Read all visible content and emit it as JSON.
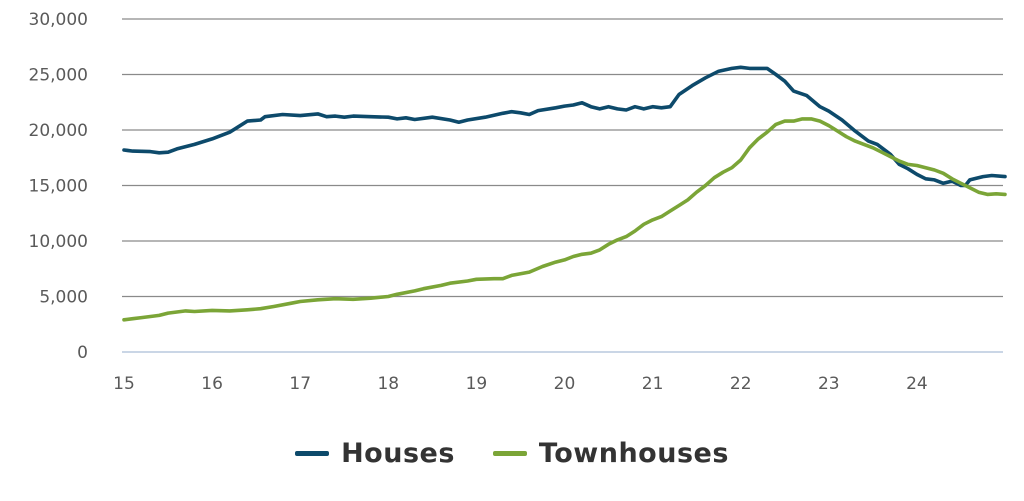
{
  "chart_data": {
    "type": "line",
    "xlim": [
      15,
      25
    ],
    "ylim": [
      0,
      30000
    ],
    "grid": true,
    "legend_position": "bottom-center",
    "x_ticks": [
      {
        "value": 15,
        "label": "15"
      },
      {
        "value": 16,
        "label": "16"
      },
      {
        "value": 17,
        "label": "17"
      },
      {
        "value": 18,
        "label": "18"
      },
      {
        "value": 19,
        "label": "19"
      },
      {
        "value": 20,
        "label": "20"
      },
      {
        "value": 21,
        "label": "21"
      },
      {
        "value": 22,
        "label": "22"
      },
      {
        "value": 23,
        "label": "23"
      },
      {
        "value": 24,
        "label": "24"
      }
    ],
    "y_ticks": [
      {
        "value": 0,
        "label": "0"
      },
      {
        "value": 5000,
        "label": "5,000"
      },
      {
        "value": 10000,
        "label": "10,000"
      },
      {
        "value": 15000,
        "label": "15,000"
      },
      {
        "value": 20000,
        "label": "20,000"
      },
      {
        "value": 25000,
        "label": "25,000"
      },
      {
        "value": 30000,
        "label": "30,000"
      }
    ],
    "series": [
      {
        "name": "Houses",
        "color": "#0d4a6b",
        "points": [
          [
            15.0,
            18200
          ],
          [
            15.1,
            18100
          ],
          [
            15.3,
            18050
          ],
          [
            15.4,
            17950
          ],
          [
            15.5,
            18000
          ],
          [
            15.6,
            18300
          ],
          [
            15.8,
            18700
          ],
          [
            16.0,
            19200
          ],
          [
            16.2,
            19800
          ],
          [
            16.3,
            20300
          ],
          [
            16.4,
            20800
          ],
          [
            16.55,
            20900
          ],
          [
            16.6,
            21200
          ],
          [
            16.8,
            21400
          ],
          [
            17.0,
            21300
          ],
          [
            17.2,
            21450
          ],
          [
            17.3,
            21200
          ],
          [
            17.4,
            21250
          ],
          [
            17.5,
            21150
          ],
          [
            17.6,
            21250
          ],
          [
            17.8,
            21200
          ],
          [
            18.0,
            21150
          ],
          [
            18.1,
            21000
          ],
          [
            18.2,
            21100
          ],
          [
            18.3,
            20950
          ],
          [
            18.5,
            21150
          ],
          [
            18.7,
            20900
          ],
          [
            18.8,
            20700
          ],
          [
            18.9,
            20900
          ],
          [
            19.1,
            21150
          ],
          [
            19.3,
            21500
          ],
          [
            19.4,
            21650
          ],
          [
            19.5,
            21550
          ],
          [
            19.6,
            21400
          ],
          [
            19.7,
            21750
          ],
          [
            19.9,
            22000
          ],
          [
            20.0,
            22150
          ],
          [
            20.1,
            22250
          ],
          [
            20.2,
            22450
          ],
          [
            20.3,
            22100
          ],
          [
            20.4,
            21900
          ],
          [
            20.5,
            22100
          ],
          [
            20.6,
            21900
          ],
          [
            20.7,
            21800
          ],
          [
            20.8,
            22100
          ],
          [
            20.9,
            21900
          ],
          [
            21.0,
            22100
          ],
          [
            21.1,
            22000
          ],
          [
            21.2,
            22100
          ],
          [
            21.3,
            23200
          ],
          [
            21.45,
            24000
          ],
          [
            21.6,
            24700
          ],
          [
            21.75,
            25300
          ],
          [
            21.9,
            25550
          ],
          [
            22.0,
            25650
          ],
          [
            22.1,
            25550
          ],
          [
            22.3,
            25550
          ],
          [
            22.4,
            25000
          ],
          [
            22.5,
            24400
          ],
          [
            22.6,
            23500
          ],
          [
            22.75,
            23100
          ],
          [
            22.9,
            22100
          ],
          [
            23.0,
            21700
          ],
          [
            23.15,
            20900
          ],
          [
            23.3,
            19900
          ],
          [
            23.45,
            19000
          ],
          [
            23.55,
            18700
          ],
          [
            23.7,
            17800
          ],
          [
            23.8,
            16900
          ],
          [
            23.9,
            16500
          ],
          [
            24.0,
            16000
          ],
          [
            24.1,
            15600
          ],
          [
            24.2,
            15500
          ],
          [
            24.3,
            15200
          ],
          [
            24.4,
            15400
          ],
          [
            24.5,
            15000
          ],
          [
            24.55,
            15000
          ],
          [
            24.6,
            15500
          ],
          [
            24.75,
            15800
          ],
          [
            24.85,
            15900
          ],
          [
            25.0,
            15800
          ]
        ]
      },
      {
        "name": "Townhouses",
        "color": "#7ba537",
        "points": [
          [
            15.0,
            2900
          ],
          [
            15.1,
            3000
          ],
          [
            15.2,
            3100
          ],
          [
            15.3,
            3200
          ],
          [
            15.4,
            3300
          ],
          [
            15.5,
            3500
          ],
          [
            15.6,
            3600
          ],
          [
            15.7,
            3700
          ],
          [
            15.8,
            3650
          ],
          [
            16.0,
            3750
          ],
          [
            16.2,
            3700
          ],
          [
            16.4,
            3800
          ],
          [
            16.55,
            3900
          ],
          [
            16.7,
            4100
          ],
          [
            16.9,
            4400
          ],
          [
            17.0,
            4550
          ],
          [
            17.2,
            4700
          ],
          [
            17.4,
            4800
          ],
          [
            17.6,
            4750
          ],
          [
            17.8,
            4850
          ],
          [
            18.0,
            5000
          ],
          [
            18.1,
            5200
          ],
          [
            18.3,
            5500
          ],
          [
            18.4,
            5700
          ],
          [
            18.6,
            6000
          ],
          [
            18.7,
            6200
          ],
          [
            18.9,
            6400
          ],
          [
            19.0,
            6550
          ],
          [
            19.2,
            6600
          ],
          [
            19.3,
            6600
          ],
          [
            19.4,
            6900
          ],
          [
            19.6,
            7200
          ],
          [
            19.75,
            7700
          ],
          [
            19.9,
            8100
          ],
          [
            20.0,
            8300
          ],
          [
            20.1,
            8600
          ],
          [
            20.2,
            8800
          ],
          [
            20.3,
            8900
          ],
          [
            20.4,
            9200
          ],
          [
            20.5,
            9700
          ],
          [
            20.6,
            10100
          ],
          [
            20.7,
            10400
          ],
          [
            20.8,
            10900
          ],
          [
            20.9,
            11500
          ],
          [
            21.0,
            11900
          ],
          [
            21.1,
            12200
          ],
          [
            21.2,
            12700
          ],
          [
            21.3,
            13200
          ],
          [
            21.4,
            13700
          ],
          [
            21.5,
            14400
          ],
          [
            21.6,
            15000
          ],
          [
            21.7,
            15700
          ],
          [
            21.8,
            16200
          ],
          [
            21.9,
            16600
          ],
          [
            22.0,
            17300
          ],
          [
            22.1,
            18400
          ],
          [
            22.2,
            19200
          ],
          [
            22.3,
            19800
          ],
          [
            22.4,
            20500
          ],
          [
            22.5,
            20800
          ],
          [
            22.6,
            20800
          ],
          [
            22.7,
            21000
          ],
          [
            22.8,
            21000
          ],
          [
            22.9,
            20800
          ],
          [
            23.0,
            20400
          ],
          [
            23.1,
            19900
          ],
          [
            23.2,
            19400
          ],
          [
            23.3,
            19000
          ],
          [
            23.4,
            18700
          ],
          [
            23.5,
            18400
          ],
          [
            23.6,
            18000
          ],
          [
            23.7,
            17600
          ],
          [
            23.8,
            17200
          ],
          [
            23.9,
            16900
          ],
          [
            24.0,
            16800
          ],
          [
            24.1,
            16600
          ],
          [
            24.2,
            16400
          ],
          [
            24.3,
            16100
          ],
          [
            24.4,
            15600
          ],
          [
            24.5,
            15200
          ],
          [
            24.6,
            14800
          ],
          [
            24.7,
            14400
          ],
          [
            24.8,
            14200
          ],
          [
            24.9,
            14250
          ],
          [
            25.0,
            14200
          ]
        ]
      }
    ]
  },
  "legend": [
    {
      "label": "Houses",
      "color": "#0d4a6b"
    },
    {
      "label": "Townhouses",
      "color": "#7ba537"
    }
  ]
}
